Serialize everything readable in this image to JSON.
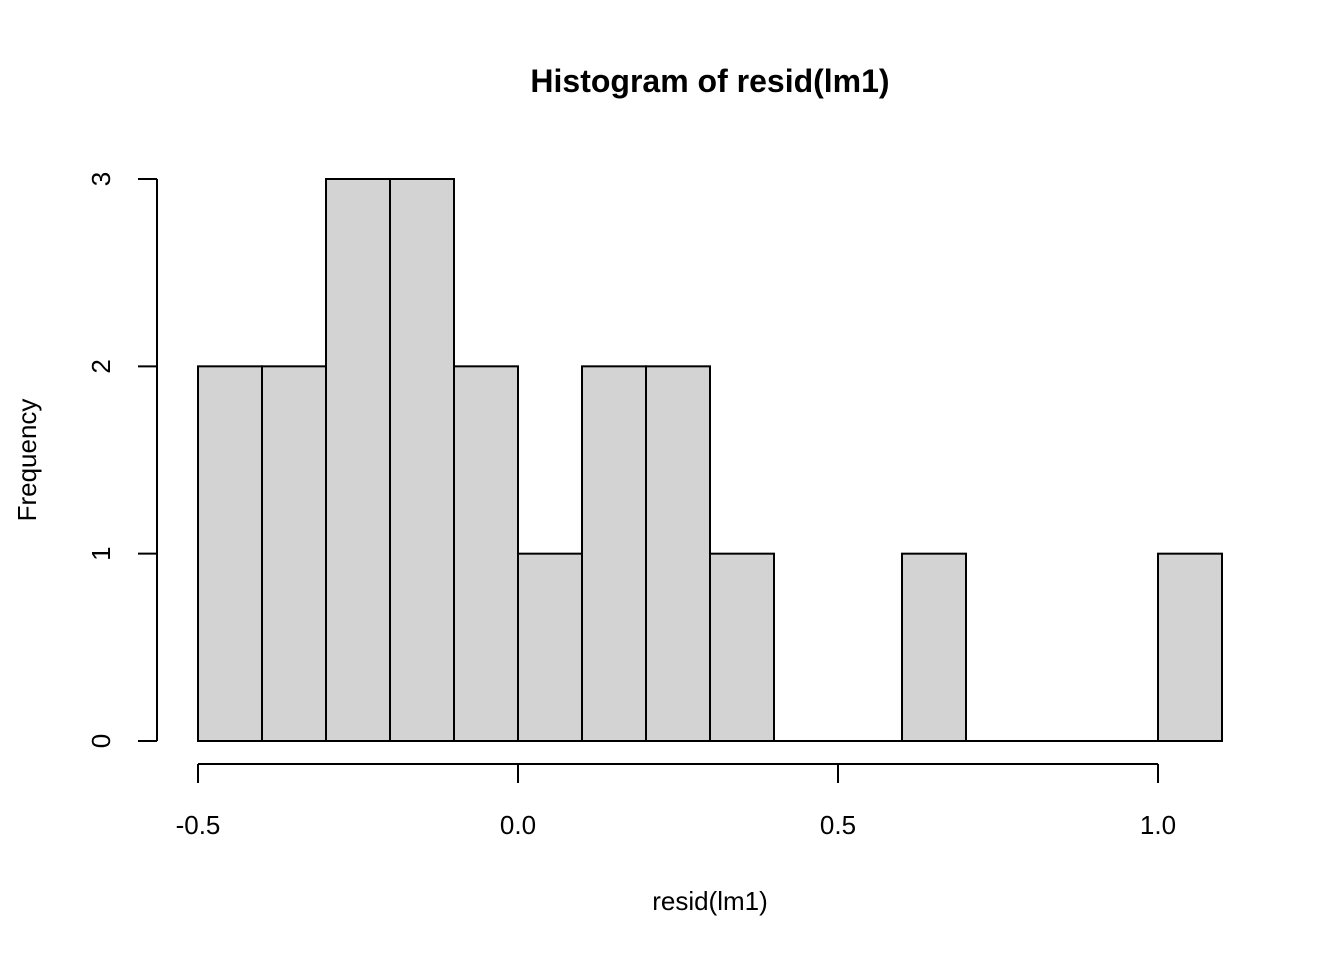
{
  "chart_data": {
    "type": "bar",
    "title": "Histogram of resid(lm1)",
    "xlabel": "resid(lm1)",
    "ylabel": "Frequency",
    "bins": [
      {
        "start": -0.5,
        "end": -0.4,
        "count": 2
      },
      {
        "start": -0.4,
        "end": -0.3,
        "count": 2
      },
      {
        "start": -0.3,
        "end": -0.2,
        "count": 3
      },
      {
        "start": -0.2,
        "end": -0.1,
        "count": 3
      },
      {
        "start": -0.1,
        "end": 0.0,
        "count": 2
      },
      {
        "start": 0.0,
        "end": 0.1,
        "count": 1
      },
      {
        "start": 0.1,
        "end": 0.2,
        "count": 2
      },
      {
        "start": 0.2,
        "end": 0.3,
        "count": 2
      },
      {
        "start": 0.3,
        "end": 0.4,
        "count": 1
      },
      {
        "start": 0.4,
        "end": 0.5,
        "count": 0
      },
      {
        "start": 0.5,
        "end": 0.6,
        "count": 0
      },
      {
        "start": 0.6,
        "end": 0.7,
        "count": 1
      },
      {
        "start": 0.7,
        "end": 0.8,
        "count": 0
      },
      {
        "start": 0.8,
        "end": 0.9,
        "count": 0
      },
      {
        "start": 0.9,
        "end": 1.0,
        "count": 0
      },
      {
        "start": 1.0,
        "end": 1.1,
        "count": 1
      }
    ],
    "xticks": [
      {
        "value": -0.5,
        "label": "-0.5"
      },
      {
        "value": 0.0,
        "label": "0.0"
      },
      {
        "value": 0.5,
        "label": "0.5"
      },
      {
        "value": 1.0,
        "label": "1.0"
      }
    ],
    "yticks": [
      {
        "value": 0,
        "label": "0"
      },
      {
        "value": 1,
        "label": "1"
      },
      {
        "value": 2,
        "label": "2"
      },
      {
        "value": 3,
        "label": "3"
      }
    ],
    "xlim": [
      -0.5,
      1.0
    ],
    "ylim": [
      0,
      3
    ],
    "bar_fill": "#d3d3d3",
    "bar_stroke": "#000000",
    "grid": false
  }
}
